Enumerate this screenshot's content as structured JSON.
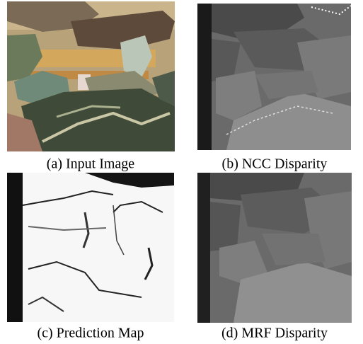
{
  "figure": {
    "panels": [
      {
        "caption": "(a) Input Image"
      },
      {
        "caption": "(b) NCC Disparity"
      },
      {
        "caption": "(c) Prediction Map"
      },
      {
        "caption": "(d) MRF Disparity"
      }
    ]
  }
}
